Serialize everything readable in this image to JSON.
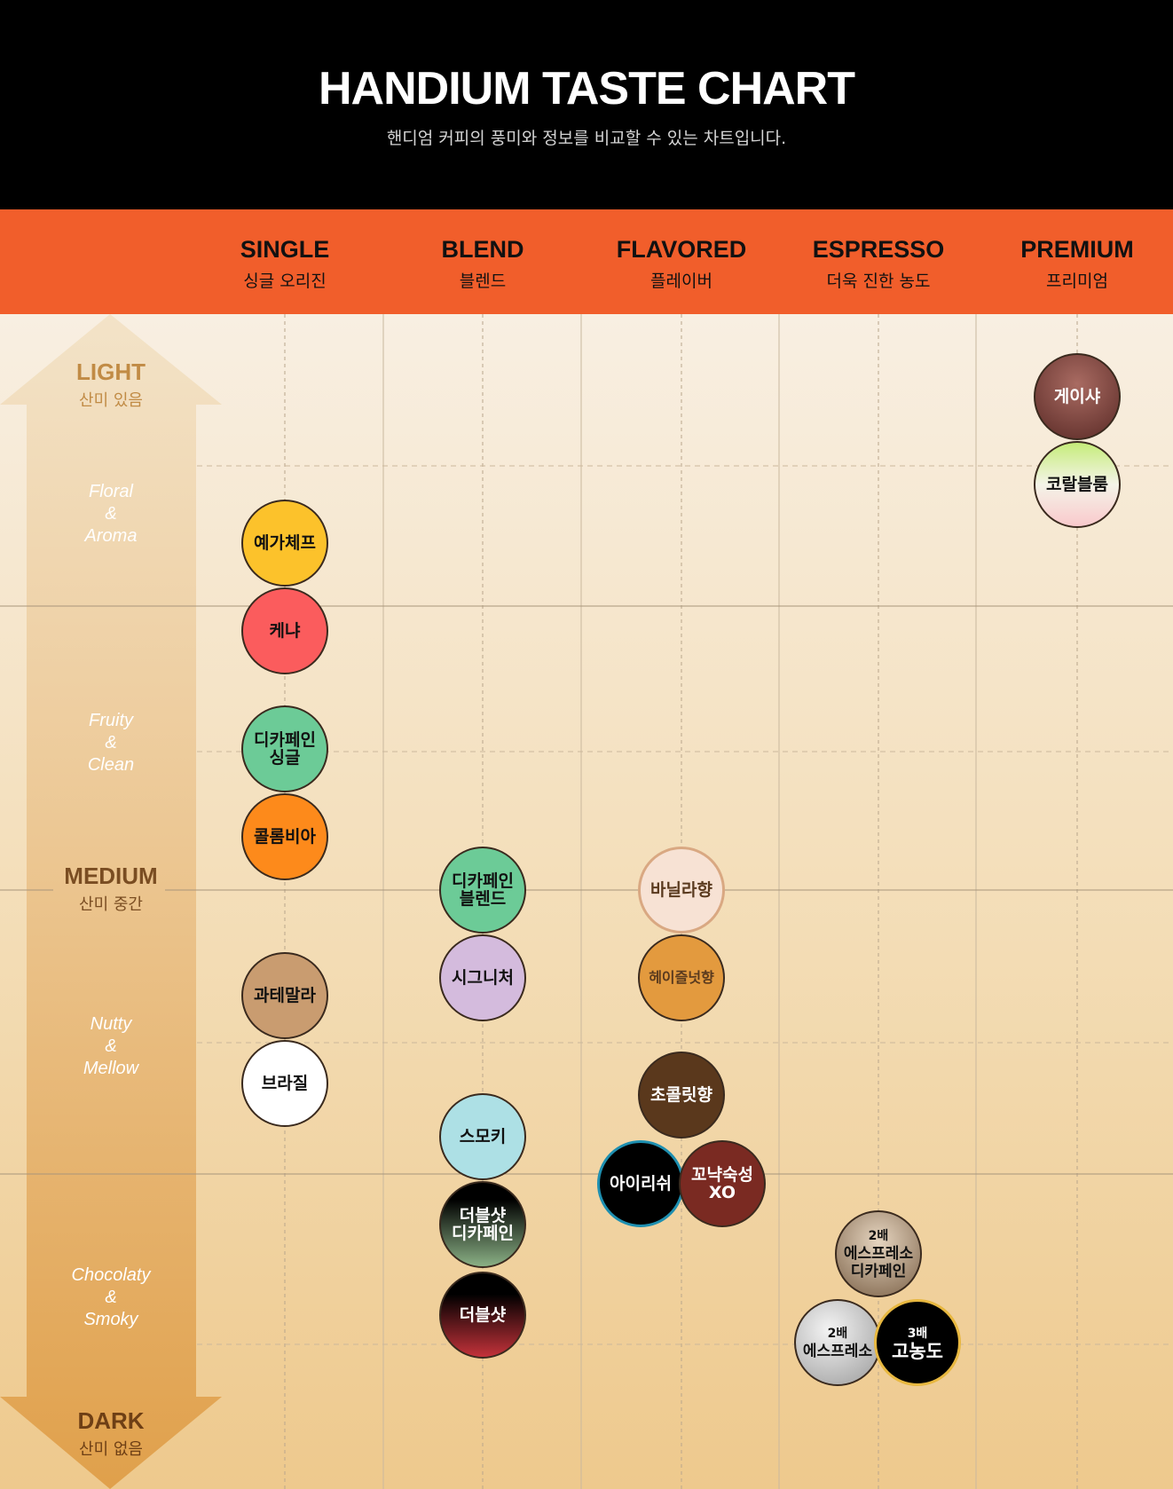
{
  "header": {
    "title": "HANDIUM TASTE CHART",
    "subtitle": "핸디엄 커피의 풍미와 정보를 비교할 수 있는 차트입니다."
  },
  "categories": [
    {
      "en": "SINGLE",
      "ko": "싱글 오리진"
    },
    {
      "en": "BLEND",
      "ko": "블렌드"
    },
    {
      "en": "FLAVORED",
      "ko": "플레이버"
    },
    {
      "en": "ESPRESSO",
      "ko": "더욱 진한 농도"
    },
    {
      "en": "PREMIUM",
      "ko": "프리미엄"
    }
  ],
  "axis": {
    "light": {
      "main": "LIGHT",
      "sub": "산미 있음"
    },
    "medium": {
      "main": "MEDIUM",
      "sub": "산미 중간"
    },
    "dark": {
      "main": "DARK",
      "sub": "산미 없음"
    }
  },
  "zones": [
    {
      "lines": [
        "Floral",
        "&",
        "Aroma"
      ]
    },
    {
      "lines": [
        "Fruity",
        "&",
        "Clean"
      ]
    },
    {
      "lines": [
        "Nutty",
        "&",
        "Mellow"
      ]
    },
    {
      "lines": [
        "Chocolaty",
        "&",
        "Smoky"
      ]
    }
  ],
  "colors": {
    "header_bg": "#000000",
    "category_bar": "#f15e2b",
    "arrow": "#e3a453"
  },
  "chart_data": {
    "type": "scatter",
    "x_categories": [
      "SINGLE",
      "BLEND",
      "FLAVORED",
      "ESPRESSO",
      "PREMIUM"
    ],
    "y_scale": "roast level: 0 = LIGHT (top) to 1 = DARK (bottom)",
    "items": [
      {
        "name": "게이샤",
        "category": "PREMIUM",
        "roast": 0.07,
        "offset": 0,
        "fill": "radial-gradient(circle at 50% 35%, #a96b62, #5a2a26)",
        "text": "#ffffff"
      },
      {
        "name": "코랄블룸",
        "category": "PREMIUM",
        "roast": 0.145,
        "offset": 0,
        "fill": "linear-gradient(to bottom, #c5ec7a 0%, #f4f4e8 50%, #f9c9cc 100%)",
        "text": "#111111"
      },
      {
        "name": "예가체프",
        "category": "SINGLE",
        "roast": 0.195,
        "offset": 0,
        "fill": "#fcc22b",
        "text": "#111111"
      },
      {
        "name": "케냐",
        "category": "SINGLE",
        "roast": 0.27,
        "offset": 0,
        "fill": "#fb5c5d",
        "text": "#111111"
      },
      {
        "name": "디카페인 싱글",
        "lines": [
          "디카페인",
          "싱글"
        ],
        "category": "SINGLE",
        "roast": 0.37,
        "offset": 0,
        "fill": "#6ccb97",
        "text": "#111111"
      },
      {
        "name": "콜롬비아",
        "category": "SINGLE",
        "roast": 0.445,
        "offset": 0,
        "fill": "#fd8a1b",
        "text": "#111111"
      },
      {
        "name": "디카페인 블렌드",
        "lines": [
          "디카페인",
          "블렌드"
        ],
        "category": "BLEND",
        "roast": 0.49,
        "offset": 0,
        "fill": "#6ccb97",
        "text": "#111111"
      },
      {
        "name": "바닐라향",
        "category": "FLAVORED",
        "roast": 0.49,
        "offset": 0,
        "fill": "#f7e2d4",
        "text": "#5a3a1e"
      },
      {
        "name": "시그니처",
        "category": "BLEND",
        "roast": 0.565,
        "offset": 0,
        "fill": "#d4bbdd",
        "text": "#111111"
      },
      {
        "name": "헤이즐넛향",
        "category": "FLAVORED",
        "roast": 0.565,
        "offset": 0,
        "fill": "#e39a3e",
        "text": "#5a3a1e"
      },
      {
        "name": "과테말라",
        "category": "SINGLE",
        "roast": 0.58,
        "offset": 0,
        "fill": "#c99c70",
        "text": "#111111"
      },
      {
        "name": "브라질",
        "category": "SINGLE",
        "roast": 0.655,
        "offset": 0,
        "fill": "#ffffff",
        "text": "#111111"
      },
      {
        "name": "초콜릿향",
        "category": "FLAVORED",
        "roast": 0.665,
        "offset": 0,
        "fill": "#5a381c",
        "text": "#ffffff"
      },
      {
        "name": "스모키",
        "category": "BLEND",
        "roast": 0.7,
        "offset": 0,
        "fill": "#ade0e5",
        "text": "#111111"
      },
      {
        "name": "아이리쉬",
        "category": "FLAVORED",
        "roast": 0.74,
        "offset": -46,
        "fill": "#000000",
        "text": "#ffffff"
      },
      {
        "name": "꼬냑숙성 XO",
        "lines": [
          "꼬냑숙성",
          "XO"
        ],
        "category": "FLAVORED",
        "roast": 0.74,
        "offset": 46,
        "fill": "#7a2a22",
        "text": "#ffffff"
      },
      {
        "name": "더블샷 디카페인",
        "lines": [
          "더블샷",
          "디카페인"
        ],
        "category": "BLEND",
        "roast": 0.775,
        "offset": 0,
        "fill": "linear-gradient(to bottom, #000000 20%, #8ab085 100%)",
        "text": "#ffffff"
      },
      {
        "name": "2배 에스프레소 디카페인",
        "lines": [
          "2배",
          "에스프레소",
          "디카페인"
        ],
        "category": "ESPRESSO",
        "roast": 0.8,
        "offset": 0,
        "fill": "radial-gradient(circle at 50% 35%, #e6d5c0, #7c6248)",
        "text": "#111111"
      },
      {
        "name": "더블샷",
        "category": "BLEND",
        "roast": 0.852,
        "offset": 0,
        "fill": "linear-gradient(to bottom, #000000 25%, #c3323a 100%)",
        "text": "#ffffff"
      },
      {
        "name": "2배 에스프레소",
        "lines": [
          "2배",
          "에스프레소"
        ],
        "category": "ESPRESSO",
        "roast": 0.875,
        "offset": -46,
        "fill": "radial-gradient(circle at 40% 35%, #f4f4f4, #9a9a9a)",
        "text": "#111111"
      },
      {
        "name": "3배 고농도",
        "lines": [
          "3배",
          "고농도"
        ],
        "category": "ESPRESSO",
        "roast": 0.875,
        "offset": 44,
        "fill": "#000000",
        "text": "#ffffff"
      }
    ]
  }
}
